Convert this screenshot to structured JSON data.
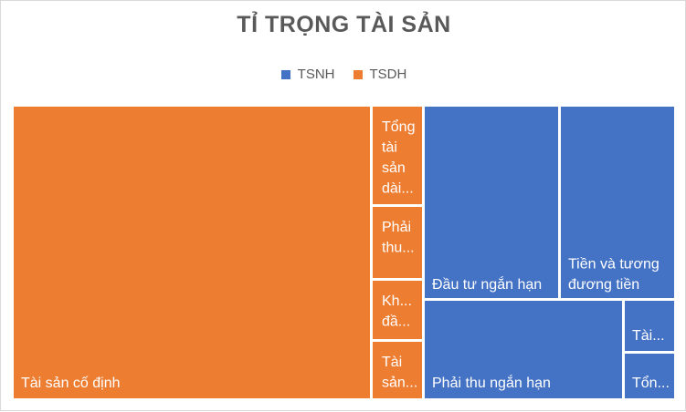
{
  "chart_data": {
    "type": "treemap",
    "title": "TỈ TRỌNG TÀI SẢN",
    "legend": [
      {
        "name": "TSNH",
        "color": "#4472c4"
      },
      {
        "name": "TSDH",
        "color": "#ed7d31"
      }
    ],
    "legend_position": "top",
    "tiles": [
      {
        "label": "Tài sản cố định",
        "group": "TSDH",
        "value": 39.5,
        "lines": [
          "Tài sản cố định"
        ]
      },
      {
        "label": "Tổng tài sản dài...",
        "group": "TSDH",
        "value": 2.4,
        "lines": [
          "Tổng",
          "tài",
          "sản",
          "dài..."
        ]
      },
      {
        "label": "Phải thu...",
        "group": "TSDH",
        "value": 1.8,
        "lines": [
          "Phải",
          "thu..."
        ]
      },
      {
        "label": "Kh... đầ...",
        "group": "TSDH",
        "value": 1.4,
        "lines": [
          "Kh...",
          "đầ..."
        ]
      },
      {
        "label": "Tài sản...",
        "group": "TSDH",
        "value": 1.4,
        "lines": [
          "Tài",
          "sản..."
        ]
      },
      {
        "label": "Đầu tư ngắn hạn",
        "group": "TSNH",
        "value": 9.5,
        "lines": [
          "Đầu tư ngắn hạn"
        ]
      },
      {
        "label": "Tiền và tương đương tiền",
        "group": "TSNH",
        "value": 6.9,
        "lines": [
          "Tiền và tương",
          "đương tiền"
        ]
      },
      {
        "label": "Phải thu ngắn hạn",
        "group": "TSNH",
        "value": 7.2,
        "lines": [
          "Phải thu ngắn hạn"
        ]
      },
      {
        "label": "Tài...",
        "group": "TSNH",
        "value": 0.9,
        "lines": [
          "Tài..."
        ]
      },
      {
        "label": "Tổn...",
        "group": "TSNH",
        "value": 0.9,
        "lines": [
          "Tổn..."
        ]
      }
    ]
  }
}
